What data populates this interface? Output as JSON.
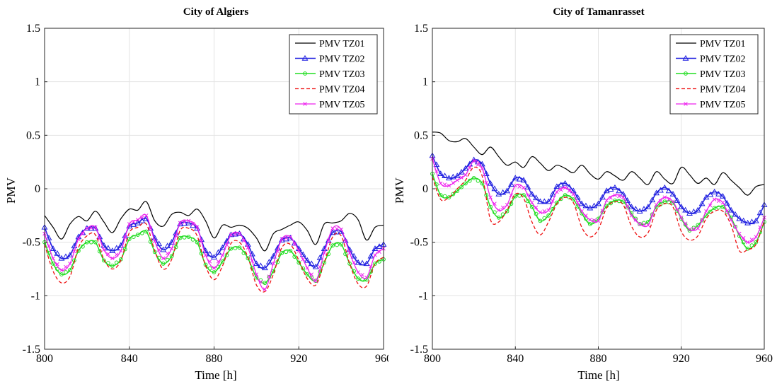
{
  "chart_data": [
    {
      "type": "line",
      "title": "City of Algiers",
      "xlabel": "Time [h]",
      "ylabel": "PMV",
      "xlim": [
        800,
        960
      ],
      "ylim": [
        -1.5,
        1.5
      ],
      "xticks": [
        800,
        840,
        880,
        920,
        960
      ],
      "yticks": [
        -1.5,
        -1,
        -0.5,
        0,
        0.5,
        1,
        1.5
      ],
      "x": [
        800,
        804,
        808,
        812,
        816,
        820,
        824,
        828,
        832,
        836,
        840,
        844,
        848,
        852,
        856,
        860,
        864,
        868,
        872,
        876,
        880,
        884,
        888,
        892,
        896,
        900,
        904,
        908,
        912,
        916,
        920,
        924,
        928,
        932,
        936,
        940,
        944,
        948,
        952,
        956,
        960
      ],
      "grid": true,
      "legend_position": "top-right",
      "series": [
        {
          "name": "PMV TZ01",
          "color": "#000000",
          "values": [
            -0.25,
            -0.36,
            -0.47,
            -0.33,
            -0.26,
            -0.3,
            -0.21,
            -0.31,
            -0.41,
            -0.28,
            -0.19,
            -0.2,
            -0.12,
            -0.3,
            -0.35,
            -0.24,
            -0.22,
            -0.25,
            -0.19,
            -0.3,
            -0.46,
            -0.34,
            -0.36,
            -0.34,
            -0.37,
            -0.46,
            -0.58,
            -0.42,
            -0.38,
            -0.34,
            -0.31,
            -0.39,
            -0.52,
            -0.33,
            -0.32,
            -0.3,
            -0.23,
            -0.29,
            -0.48,
            -0.36,
            -0.34
          ]
        },
        {
          "name": "PMV TZ02",
          "color": "#1f1fe0",
          "values": [
            -0.36,
            -0.56,
            -0.65,
            -0.62,
            -0.45,
            -0.37,
            -0.37,
            -0.53,
            -0.58,
            -0.53,
            -0.35,
            -0.32,
            -0.28,
            -0.46,
            -0.57,
            -0.5,
            -0.33,
            -0.32,
            -0.37,
            -0.58,
            -0.64,
            -0.55,
            -0.43,
            -0.42,
            -0.52,
            -0.7,
            -0.74,
            -0.63,
            -0.48,
            -0.46,
            -0.56,
            -0.67,
            -0.73,
            -0.56,
            -0.41,
            -0.4,
            -0.57,
            -0.69,
            -0.7,
            -0.56,
            -0.52
          ]
        },
        {
          "name": "PMV TZ03",
          "color": "#22dd22",
          "values": [
            -0.5,
            -0.7,
            -0.8,
            -0.76,
            -0.58,
            -0.5,
            -0.5,
            -0.67,
            -0.72,
            -0.66,
            -0.47,
            -0.43,
            -0.4,
            -0.59,
            -0.7,
            -0.63,
            -0.46,
            -0.45,
            -0.5,
            -0.71,
            -0.78,
            -0.68,
            -0.56,
            -0.55,
            -0.65,
            -0.83,
            -0.88,
            -0.77,
            -0.6,
            -0.58,
            -0.69,
            -0.8,
            -0.86,
            -0.69,
            -0.53,
            -0.52,
            -0.7,
            -0.84,
            -0.85,
            -0.7,
            -0.66
          ]
        },
        {
          "name": "PMV TZ04",
          "color": "#ee1111",
          "values": [
            -0.52,
            -0.77,
            -0.88,
            -0.82,
            -0.55,
            -0.44,
            -0.43,
            -0.66,
            -0.75,
            -0.67,
            -0.41,
            -0.36,
            -0.33,
            -0.58,
            -0.75,
            -0.66,
            -0.39,
            -0.37,
            -0.44,
            -0.72,
            -0.85,
            -0.72,
            -0.51,
            -0.5,
            -0.64,
            -0.9,
            -0.96,
            -0.8,
            -0.55,
            -0.52,
            -0.67,
            -0.84,
            -0.9,
            -0.69,
            -0.45,
            -0.44,
            -0.7,
            -0.89,
            -0.91,
            -0.7,
            -0.64
          ]
        },
        {
          "name": "PMV TZ05",
          "color": "#ee22ee",
          "values": [
            -0.42,
            -0.65,
            -0.76,
            -0.7,
            -0.47,
            -0.37,
            -0.36,
            -0.57,
            -0.65,
            -0.58,
            -0.33,
            -0.29,
            -0.25,
            -0.49,
            -0.65,
            -0.56,
            -0.32,
            -0.3,
            -0.36,
            -0.62,
            -0.74,
            -0.62,
            -0.43,
            -0.42,
            -0.55,
            -0.8,
            -0.94,
            -0.7,
            -0.47,
            -0.45,
            -0.58,
            -0.74,
            -0.86,
            -0.6,
            -0.37,
            -0.38,
            -0.6,
            -0.78,
            -0.83,
            -0.62,
            -0.56
          ]
        }
      ]
    },
    {
      "type": "line",
      "title": "City of Tamanrasset",
      "xlabel": "Time [h]",
      "ylabel": "PMV",
      "xlim": [
        800,
        960
      ],
      "ylim": [
        -1.5,
        1.5
      ],
      "xticks": [
        800,
        840,
        880,
        920,
        960
      ],
      "yticks": [
        -1.5,
        -1,
        -0.5,
        0,
        0.5,
        1,
        1.5
      ],
      "x": [
        800,
        804,
        808,
        812,
        816,
        820,
        824,
        828,
        832,
        836,
        840,
        844,
        848,
        852,
        856,
        860,
        864,
        868,
        872,
        876,
        880,
        884,
        888,
        892,
        896,
        900,
        904,
        908,
        912,
        916,
        920,
        924,
        928,
        932,
        936,
        940,
        944,
        948,
        952,
        956,
        960
      ],
      "grid": true,
      "legend_position": "top-right",
      "series": [
        {
          "name": "PMV TZ01",
          "color": "#000000",
          "values": [
            0.53,
            0.52,
            0.45,
            0.44,
            0.47,
            0.39,
            0.32,
            0.39,
            0.3,
            0.22,
            0.25,
            0.2,
            0.3,
            0.24,
            0.17,
            0.22,
            0.19,
            0.15,
            0.22,
            0.14,
            0.09,
            0.16,
            0.12,
            0.08,
            0.16,
            0.1,
            0.04,
            0.16,
            0.09,
            0.05,
            0.2,
            0.13,
            0.05,
            0.1,
            0.04,
            0.15,
            0.08,
            0.01,
            -0.06,
            0.02,
            0.04
          ]
        },
        {
          "name": "PMV TZ02",
          "color": "#1f1fe0",
          "values": [
            0.31,
            0.14,
            0.1,
            0.12,
            0.19,
            0.27,
            0.23,
            0.05,
            -0.05,
            -0.02,
            0.1,
            0.08,
            -0.05,
            -0.12,
            -0.12,
            0.02,
            0.05,
            -0.02,
            -0.14,
            -0.18,
            -0.14,
            -0.02,
            0.01,
            -0.05,
            -0.17,
            -0.21,
            -0.17,
            -0.04,
            0.01,
            -0.05,
            -0.17,
            -0.23,
            -0.2,
            -0.08,
            -0.03,
            -0.07,
            -0.2,
            -0.28,
            -0.32,
            -0.3,
            -0.15
          ]
        },
        {
          "name": "PMV TZ03",
          "color": "#22dd22",
          "values": [
            0.14,
            -0.06,
            -0.08,
            -0.02,
            0.05,
            0.1,
            0.05,
            -0.17,
            -0.27,
            -0.21,
            -0.07,
            -0.06,
            -0.17,
            -0.3,
            -0.25,
            -0.13,
            -0.06,
            -0.1,
            -0.23,
            -0.33,
            -0.28,
            -0.16,
            -0.11,
            -0.12,
            -0.23,
            -0.33,
            -0.31,
            -0.17,
            -0.12,
            -0.13,
            -0.28,
            -0.39,
            -0.34,
            -0.25,
            -0.18,
            -0.17,
            -0.27,
            -0.44,
            -0.56,
            -0.5,
            -0.31
          ]
        },
        {
          "name": "PMV TZ04",
          "color": "#ee1111",
          "values": [
            0.11,
            -0.1,
            -0.08,
            0.0,
            0.08,
            0.2,
            0.12,
            -0.29,
            -0.31,
            -0.2,
            -0.05,
            -0.09,
            -0.31,
            -0.43,
            -0.31,
            -0.14,
            -0.08,
            -0.13,
            -0.36,
            -0.45,
            -0.38,
            -0.18,
            -0.12,
            -0.15,
            -0.35,
            -0.45,
            -0.41,
            -0.2,
            -0.14,
            -0.17,
            -0.4,
            -0.48,
            -0.44,
            -0.28,
            -0.21,
            -0.21,
            -0.34,
            -0.58,
            -0.57,
            -0.52,
            -0.3
          ]
        },
        {
          "name": "PMV TZ05",
          "color": "#ee22ee",
          "values": [
            0.28,
            0.05,
            0.03,
            0.08,
            0.13,
            0.26,
            0.19,
            -0.08,
            -0.2,
            -0.15,
            0.03,
            0.01,
            -0.13,
            -0.22,
            -0.2,
            -0.03,
            0.01,
            -0.05,
            -0.21,
            -0.29,
            -0.3,
            -0.11,
            -0.06,
            -0.08,
            -0.25,
            -0.33,
            -0.34,
            -0.15,
            -0.08,
            -0.12,
            -0.27,
            -0.38,
            -0.37,
            -0.21,
            -0.1,
            -0.13,
            -0.29,
            -0.42,
            -0.5,
            -0.45,
            -0.27
          ]
        }
      ]
    }
  ]
}
